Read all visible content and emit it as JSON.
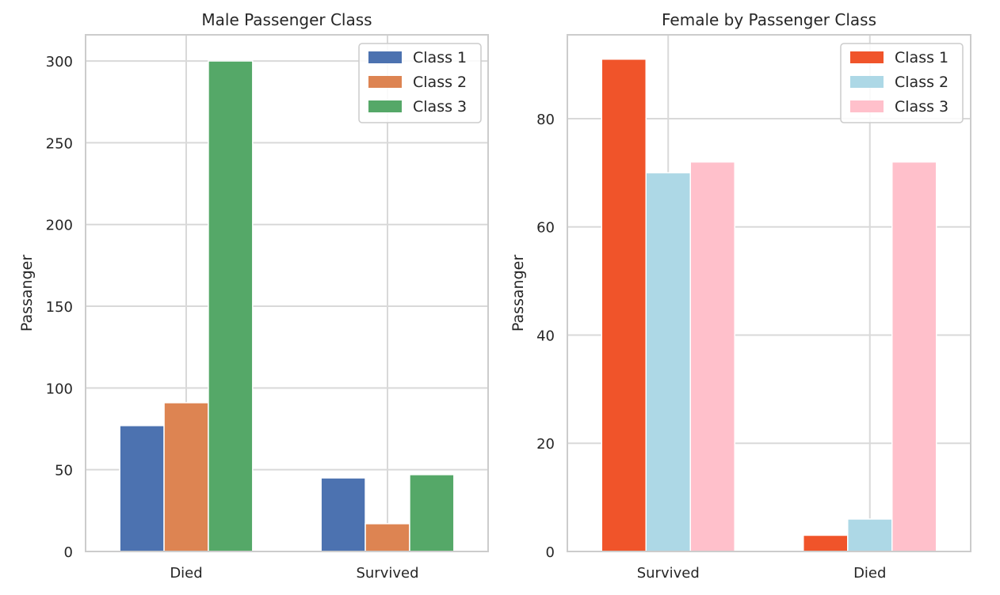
{
  "chart_data": [
    {
      "type": "bar",
      "title": "Male Passenger Class",
      "ylabel": "Passanger",
      "xlabel": "",
      "categories": [
        "Died",
        "Survived"
      ],
      "ylim": [
        0,
        316
      ],
      "yticks": [
        0,
        50,
        100,
        150,
        200,
        250,
        300
      ],
      "series": [
        {
          "name": "Class 1",
          "values": [
            77,
            45
          ],
          "color": "#4c72b0"
        },
        {
          "name": "Class 2",
          "values": [
            91,
            17
          ],
          "color": "#dd8452"
        },
        {
          "name": "Class 3",
          "values": [
            300,
            47
          ],
          "color": "#55a868"
        }
      ],
      "grid": true,
      "legend_position": "top-right"
    },
    {
      "type": "bar",
      "title": "Female by Passenger Class",
      "ylabel": "Passanger",
      "xlabel": "",
      "categories": [
        "Survived",
        "Died"
      ],
      "ylim": [
        0,
        95.5
      ],
      "yticks": [
        0,
        20,
        40,
        60,
        80
      ],
      "series": [
        {
          "name": "Class 1",
          "values": [
            91,
            3
          ],
          "color": "#f0542a"
        },
        {
          "name": "Class 2",
          "values": [
            70,
            6
          ],
          "color": "#add8e6"
        },
        {
          "name": "Class 3",
          "values": [
            72,
            72
          ],
          "color": "#ffc0cb"
        }
      ],
      "grid": true,
      "legend_position": "top-right"
    }
  ]
}
